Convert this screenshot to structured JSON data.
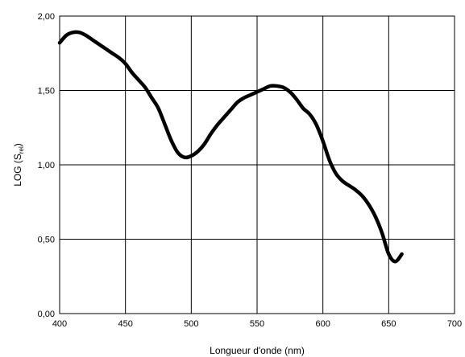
{
  "chart_data": {
    "type": "line",
    "title": "",
    "xlabel": "Longueur d'onde (nm)",
    "ylabel": {
      "main": "LOG (S",
      "sub": "rel",
      "end": ")"
    },
    "xlim": [
      400,
      700
    ],
    "ylim": [
      0,
      2
    ],
    "grid": true,
    "x_ticks": [
      400,
      450,
      500,
      550,
      600,
      650,
      700
    ],
    "x_tick_labels": [
      "400",
      "450",
      "500",
      "550",
      "600",
      "650",
      "700"
    ],
    "y_ticks": [
      0,
      0.5,
      1,
      1.5,
      2
    ],
    "y_tick_labels": [
      "0,00",
      "0,50",
      "1,00",
      "1,50",
      "2,00"
    ],
    "line_color": "#000000",
    "series": [
      {
        "x": [
          400,
          405,
          410,
          415,
          420,
          425,
          430,
          435,
          440,
          445,
          450,
          455,
          460,
          465,
          470,
          475,
          480,
          485,
          490,
          495,
          500,
          505,
          510,
          515,
          520,
          525,
          530,
          535,
          540,
          545,
          550,
          555,
          560,
          565,
          570,
          575,
          580,
          585,
          590,
          595,
          600,
          605,
          610,
          615,
          620,
          625,
          630,
          635,
          640,
          645,
          650,
          655,
          660
        ],
        "y": [
          1.82,
          1.87,
          1.89,
          1.89,
          1.87,
          1.84,
          1.81,
          1.78,
          1.75,
          1.72,
          1.68,
          1.62,
          1.57,
          1.52,
          1.45,
          1.38,
          1.27,
          1.16,
          1.08,
          1.05,
          1.06,
          1.09,
          1.14,
          1.21,
          1.27,
          1.32,
          1.37,
          1.42,
          1.45,
          1.47,
          1.49,
          1.51,
          1.53,
          1.53,
          1.52,
          1.49,
          1.44,
          1.38,
          1.34,
          1.27,
          1.16,
          1.03,
          0.94,
          0.89,
          0.86,
          0.83,
          0.79,
          0.73,
          0.65,
          0.54,
          0.4,
          0.35,
          0.4
        ]
      }
    ]
  }
}
